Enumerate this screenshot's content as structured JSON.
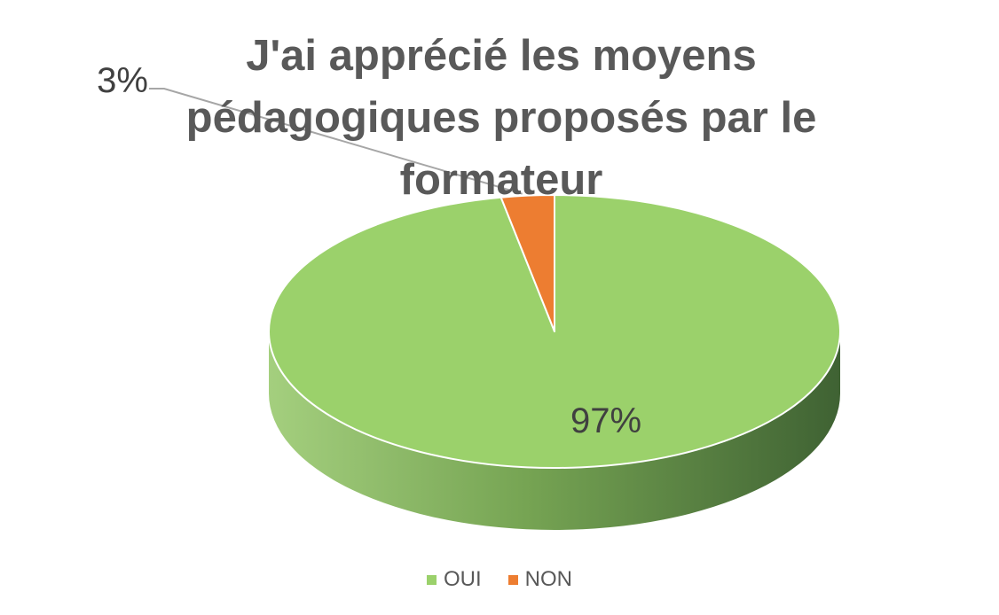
{
  "chart_data": {
    "type": "pie",
    "title": "J'ai apprécié les moyens pédagogiques proposés par le formateur",
    "categories": [
      "OUI",
      "NON"
    ],
    "values": [
      97,
      3
    ],
    "data_labels": [
      "97%",
      "3%"
    ],
    "colors": {
      "OUI": "#9BD16B",
      "NON": "#ED7D31"
    },
    "style": "3d",
    "legend_position": "bottom"
  }
}
